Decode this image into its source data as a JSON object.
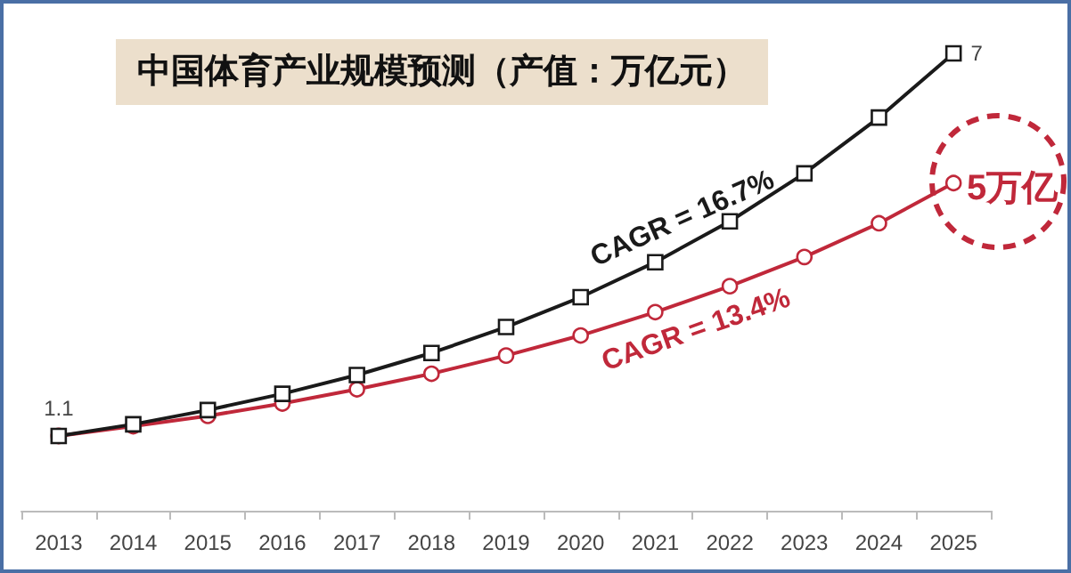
{
  "chart_data": {
    "type": "line",
    "title": "中国体育产业规模预测（产值：万亿元）",
    "categories": [
      "2013",
      "2014",
      "2015",
      "2016",
      "2017",
      "2018",
      "2019",
      "2020",
      "2021",
      "2022",
      "2023",
      "2024",
      "2025"
    ],
    "series": [
      {
        "color": "#1a1a1a",
        "marker": "square",
        "values": [
          1.1,
          1.28,
          1.5,
          1.75,
          2.04,
          2.38,
          2.78,
          3.24,
          3.78,
          4.41,
          5.15,
          6.01,
          7
        ],
        "value_labels": [
          "1.1",
          null,
          null,
          null,
          null,
          null,
          null,
          null,
          null,
          null,
          null,
          null,
          "7"
        ]
      },
      {
        "color": "#c0283a",
        "marker": "circle",
        "values": [
          1.1,
          1.25,
          1.41,
          1.6,
          1.82,
          2.06,
          2.34,
          2.65,
          3.01,
          3.41,
          3.86,
          4.38,
          5
        ]
      }
    ],
    "annotations": [
      "CAGR = 16.7%",
      "CAGR = 13.4%",
      {
        "text": "5万亿",
        "x": "2025",
        "y": 5
      }
    ],
    "tick_labels": "x",
    "grid": false,
    "line_style": "solid"
  }
}
